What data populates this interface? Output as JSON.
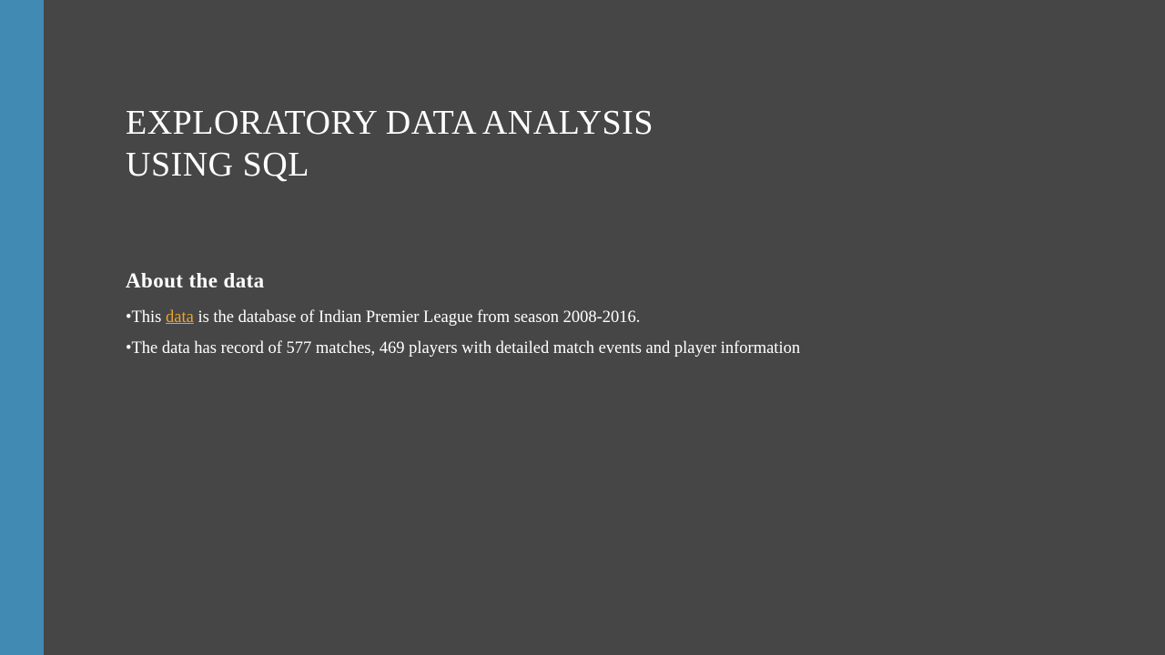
{
  "slide": {
    "title_line1": "EXPLORATORY DATA ANALYSIS",
    "title_line2": "USING SQL",
    "subheading": "About the data",
    "bullet1": {
      "prefix": "•This ",
      "link_text": "data",
      "suffix": " is the database of Indian Premier League from season 2008-2016."
    },
    "bullet2": "•The data has record of 577 matches, 469 players with detailed match events and player information"
  },
  "colors": {
    "background": "#464646",
    "accent_bar": "#418ab3",
    "text": "#ffffff",
    "link": "#f0a22e"
  }
}
